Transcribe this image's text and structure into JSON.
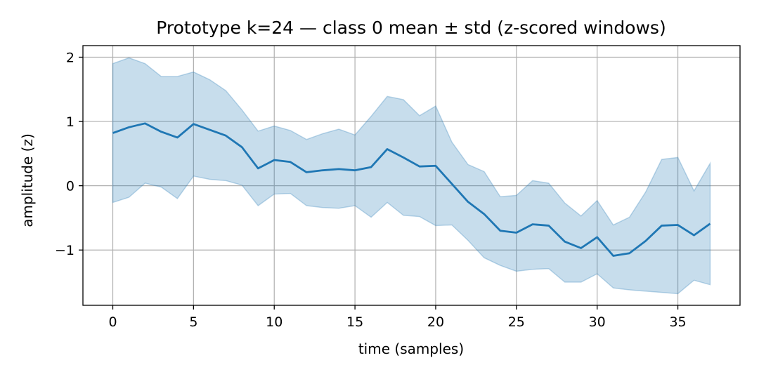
{
  "chart_data": {
    "type": "line",
    "title": "Prototype k=24 — class 0 mean ± std (z-scored windows)",
    "xlabel": "time (samples)",
    "ylabel": "amplitude (z)",
    "xlim": [
      -1.85,
      38.85
    ],
    "ylim": [
      -1.86,
      2.18
    ],
    "xticks": [
      0,
      5,
      10,
      15,
      20,
      25,
      30,
      35
    ],
    "xtick_labels": [
      "0",
      "5",
      "10",
      "15",
      "20",
      "25",
      "30",
      "35"
    ],
    "yticks": [
      -1,
      0,
      1,
      2
    ],
    "ytick_labels": [
      "−1",
      "0",
      "1",
      "2"
    ],
    "grid": true,
    "colors": {
      "line": "#1f77b4",
      "band": "#1f77b4"
    },
    "x": [
      0,
      1,
      2,
      3,
      4,
      5,
      6,
      7,
      8,
      9,
      10,
      11,
      12,
      13,
      14,
      15,
      16,
      17,
      18,
      19,
      20,
      21,
      22,
      23,
      24,
      25,
      26,
      27,
      28,
      29,
      30,
      31,
      32,
      33,
      34,
      35,
      36,
      37
    ],
    "series": [
      {
        "kind": "mean",
        "values": [
          0.82,
          0.91,
          0.97,
          0.84,
          0.75,
          0.96,
          0.87,
          0.78,
          0.6,
          0.27,
          0.4,
          0.37,
          0.21,
          0.24,
          0.26,
          0.24,
          0.29,
          0.57,
          0.44,
          0.3,
          0.31,
          0.03,
          -0.25,
          -0.44,
          -0.7,
          -0.73,
          -0.6,
          -0.62,
          -0.87,
          -0.97,
          -0.8,
          -1.09,
          -1.05,
          -0.86,
          -0.62,
          -0.61,
          -0.77,
          -0.59
        ]
      },
      {
        "kind": "upper",
        "values": [
          1.9,
          1.99,
          1.9,
          1.7,
          1.7,
          1.77,
          1.65,
          1.48,
          1.18,
          0.85,
          0.93,
          0.86,
          0.72,
          0.81,
          0.88,
          0.79,
          1.08,
          1.39,
          1.34,
          1.09,
          1.24,
          0.68,
          0.33,
          0.22,
          -0.17,
          -0.15,
          0.08,
          0.04,
          -0.27,
          -0.47,
          -0.23,
          -0.61,
          -0.49,
          -0.1,
          0.41,
          0.44,
          -0.08,
          0.35
        ]
      },
      {
        "kind": "lower",
        "values": [
          -0.26,
          -0.18,
          0.04,
          -0.02,
          -0.2,
          0.15,
          0.1,
          0.08,
          0.01,
          -0.31,
          -0.13,
          -0.12,
          -0.31,
          -0.34,
          -0.35,
          -0.31,
          -0.49,
          -0.26,
          -0.46,
          -0.48,
          -0.62,
          -0.61,
          -0.85,
          -1.12,
          -1.24,
          -1.33,
          -1.3,
          -1.29,
          -1.5,
          -1.5,
          -1.37,
          -1.59,
          -1.62,
          -1.64,
          -1.66,
          -1.68,
          -1.47,
          -1.54
        ]
      }
    ]
  }
}
